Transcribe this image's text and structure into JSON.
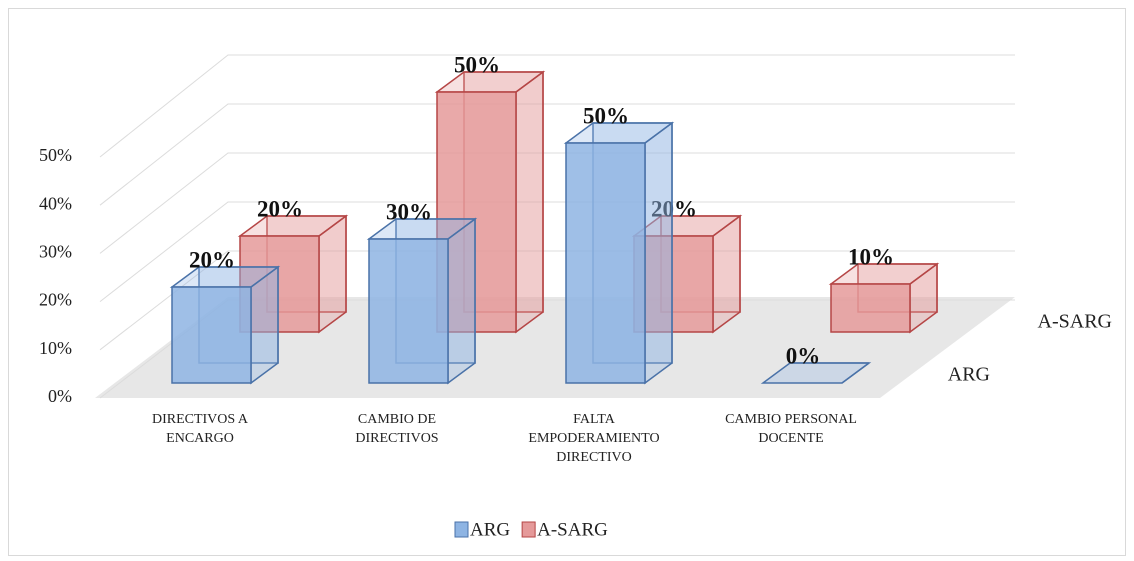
{
  "chart_data": {
    "type": "bar3d",
    "categories": [
      "DIRECTIVOS A\nENCARGO",
      "CAMBIO DE\nDIRECTIVOS",
      "FALTA\nEMPODERAMIENTO\nDIRECTIVO",
      "CAMBIO PERSONAL\nDOCENTE"
    ],
    "series": [
      {
        "name": "ARG",
        "color": "#8eb4e3",
        "stroke": "#4a72a8",
        "values": [
          20,
          30,
          50,
          0
        ],
        "value_labels": [
          "20%",
          "30%",
          "50%",
          "0%"
        ]
      },
      {
        "name": "A-SARG",
        "color": "#e59a9a",
        "stroke": "#b54646",
        "values": [
          20,
          50,
          20,
          10
        ],
        "value_labels": [
          "20%",
          "50%",
          "20%",
          "10%"
        ]
      }
    ],
    "ylim": [
      0,
      50
    ],
    "yticks": [
      {
        "value": 0,
        "label": "0%"
      },
      {
        "value": 10,
        "label": "10%"
      },
      {
        "value": 20,
        "label": "20%"
      },
      {
        "value": 30,
        "label": "30%"
      },
      {
        "value": 40,
        "label": "40%"
      },
      {
        "value": 50,
        "label": "50%"
      }
    ],
    "grid": true,
    "legend": "bottom"
  }
}
